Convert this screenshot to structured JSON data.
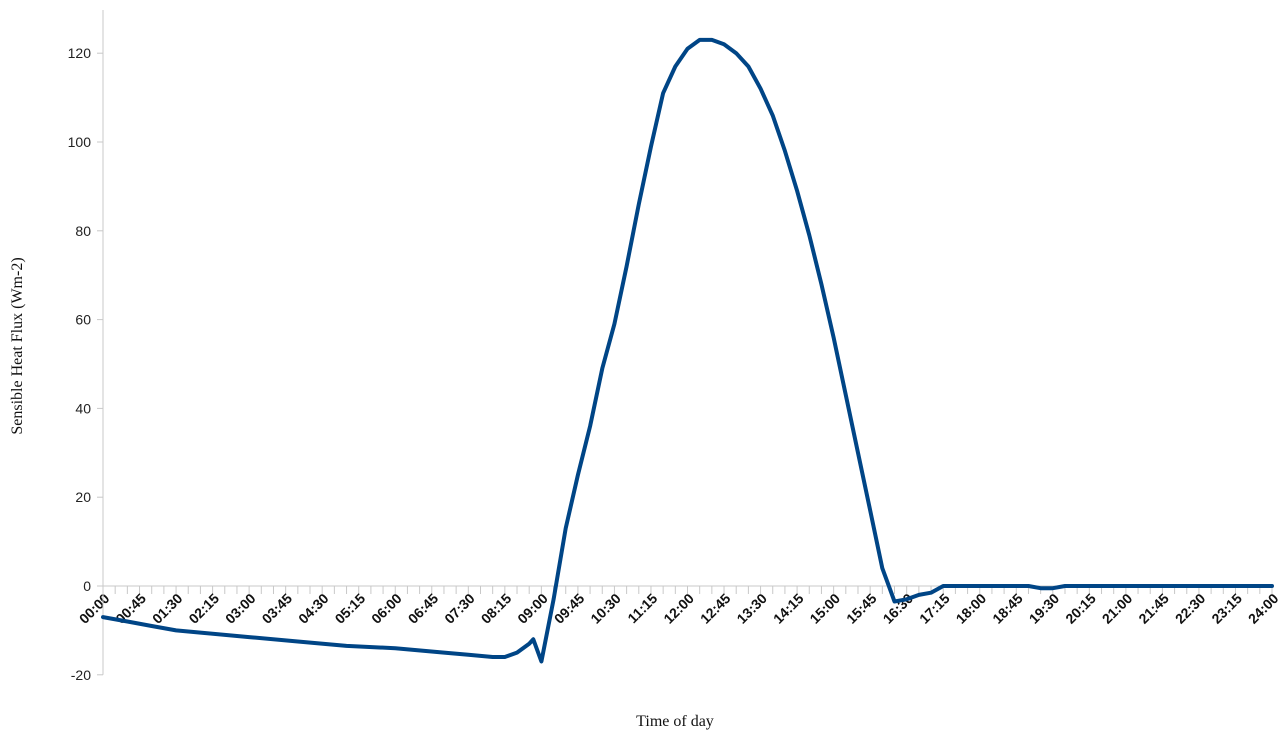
{
  "chart_data": {
    "type": "line",
    "title": "",
    "xlabel": "Time of day",
    "ylabel": "Sensible Heat Flux  (Wm-2)",
    "ylim": [
      -20,
      130
    ],
    "yticks": [
      -20,
      0,
      20,
      40,
      60,
      80,
      100,
      120
    ],
    "xticks": [
      "00:00",
      "00:45",
      "01:30",
      "02:15",
      "03:00",
      "03:45",
      "04:30",
      "05:15",
      "06:00",
      "06:45",
      "07:30",
      "08:15",
      "09:00",
      "09:45",
      "10:30",
      "11:15",
      "12:00",
      "12:45",
      "13:30",
      "14:15",
      "15:00",
      "15:45",
      "16:30",
      "17:15",
      "18:00",
      "18:45",
      "19:30",
      "20:15",
      "21:00",
      "21:45",
      "22:30",
      "23:15",
      "24:00"
    ],
    "grid": false,
    "color": "#004586",
    "series": [
      {
        "x": [
          "00:00",
          "00:30",
          "01:00",
          "01:30",
          "02:00",
          "03:00",
          "04:00",
          "05:00",
          "06:00",
          "07:00",
          "07:30",
          "08:00",
          "08:15",
          "08:30",
          "08:45",
          "08:50",
          "09:00",
          "09:15",
          "09:30",
          "09:45",
          "10:00",
          "10:15",
          "10:30",
          "10:45",
          "11:00",
          "11:15",
          "11:30",
          "11:45",
          "12:00",
          "12:15",
          "12:30",
          "12:45",
          "13:00",
          "13:15",
          "13:30",
          "13:45",
          "14:00",
          "14:15",
          "14:30",
          "14:45",
          "15:00",
          "15:15",
          "15:30",
          "15:45",
          "16:00",
          "16:15",
          "16:30",
          "16:45",
          "17:00",
          "17:15",
          "17:30",
          "17:45",
          "18:00",
          "18:30",
          "19:00",
          "19:15",
          "19:30",
          "19:45",
          "20:00",
          "20:15",
          "21:00",
          "22:00",
          "23:00",
          "24:00"
        ],
        "values": [
          -7,
          -8,
          -9,
          -10,
          -10.5,
          -11.5,
          -12.5,
          -13.5,
          -14,
          -15,
          -15.5,
          -16,
          -16,
          -15,
          -13,
          -12,
          -17,
          -3,
          13,
          25,
          36,
          49,
          59,
          72,
          86,
          99,
          111,
          117,
          121,
          123,
          123,
          122,
          120,
          117,
          112,
          106,
          98,
          89,
          79,
          68,
          56,
          43,
          30,
          17,
          4,
          -3.5,
          -3,
          -2,
          -1.5,
          0,
          0,
          0,
          0,
          0,
          0,
          -0.5,
          -0.5,
          0,
          0,
          0,
          0,
          0,
          0,
          0
        ]
      }
    ]
  }
}
